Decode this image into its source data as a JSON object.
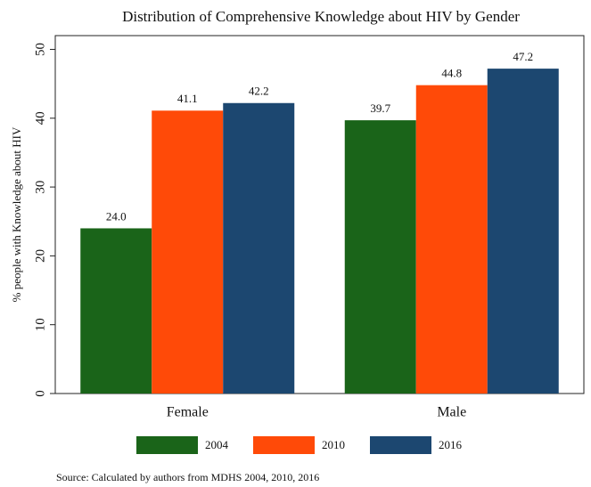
{
  "chart_data": {
    "type": "bar",
    "title": "Distribution of Comprehensive Knowledge about HIV by Gender",
    "ylabel": "% people with Knowledge about  HIV",
    "categories": [
      "Female",
      "Male"
    ],
    "series": [
      {
        "name": "2004",
        "color": "#1a6419",
        "values": [
          24.0,
          39.7
        ],
        "value_labels": [
          "24.0",
          "39.7"
        ]
      },
      {
        "name": "2010",
        "color": "#ff4a08",
        "values": [
          41.1,
          44.8
        ],
        "value_labels": [
          "41.1",
          "44.8"
        ]
      },
      {
        "name": "2016",
        "color": "#1c4770",
        "values": [
          42.2,
          47.2
        ],
        "value_labels": [
          "42.2",
          "47.2"
        ]
      }
    ],
    "ylim": [
      0,
      52
    ],
    "yticks": [
      0,
      10,
      20,
      30,
      40,
      50
    ],
    "grid": false,
    "legend": "bottom",
    "source": "Source: Calculated  by authors from MDHS 2004, 2010, 2016"
  }
}
